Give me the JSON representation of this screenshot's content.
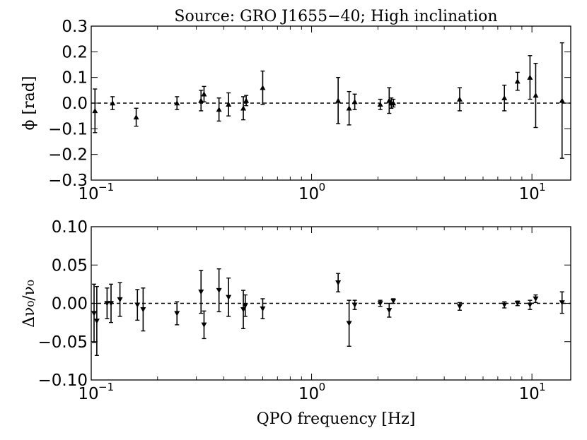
{
  "chart_data": [
    {
      "type": "scatter",
      "panel": "top",
      "title": "Source: GRO J1655−40; High inclination",
      "xlabel": "",
      "ylabel": "ϕ [rad]",
      "xscale": "log",
      "xlim": [
        0.1,
        15
      ],
      "ylim": [
        -0.3,
        0.3
      ],
      "yticks": [
        "−0.3",
        "−0.2",
        "−0.1",
        "0.0",
        "0.1",
        "0.2",
        "0.3"
      ],
      "xticks": [
        {
          "base": "10",
          "exp": "−1"
        },
        {
          "base": "10",
          "exp": "0"
        },
        {
          "base": "10",
          "exp": "1"
        }
      ],
      "marker": "triangle-up",
      "reference_line": {
        "y": 0,
        "style": "dashed"
      },
      "grid": false,
      "points": [
        {
          "x": 0.104,
          "y": -0.03,
          "err": 0.085
        },
        {
          "x": 0.125,
          "y": 0.0,
          "err": 0.025
        },
        {
          "x": 0.16,
          "y": -0.055,
          "err": 0.035
        },
        {
          "x": 0.245,
          "y": 0.0,
          "err": 0.025
        },
        {
          "x": 0.315,
          "y": 0.01,
          "err": 0.04
        },
        {
          "x": 0.325,
          "y": 0.035,
          "err": 0.03
        },
        {
          "x": 0.38,
          "y": -0.025,
          "err": 0.045
        },
        {
          "x": 0.42,
          "y": -0.005,
          "err": 0.045
        },
        {
          "x": 0.49,
          "y": -0.02,
          "err": 0.045
        },
        {
          "x": 0.505,
          "y": 0.01,
          "err": 0.02
        },
        {
          "x": 0.6,
          "y": 0.06,
          "err": 0.065
        },
        {
          "x": 1.32,
          "y": 0.01,
          "err": 0.09
        },
        {
          "x": 1.48,
          "y": -0.02,
          "err": 0.065
        },
        {
          "x": 1.57,
          "y": 0.005,
          "err": 0.03
        },
        {
          "x": 2.05,
          "y": -0.005,
          "err": 0.02
        },
        {
          "x": 2.25,
          "y": 0.01,
          "err": 0.05
        },
        {
          "x": 2.3,
          "y": 0.0,
          "err": 0.02
        },
        {
          "x": 2.35,
          "y": 0.0,
          "err": 0.015
        },
        {
          "x": 4.7,
          "y": 0.015,
          "err": 0.045
        },
        {
          "x": 7.5,
          "y": 0.02,
          "err": 0.05
        },
        {
          "x": 8.6,
          "y": 0.085,
          "err": 0.035
        },
        {
          "x": 9.8,
          "y": 0.1,
          "err": 0.085
        },
        {
          "x": 10.4,
          "y": 0.03,
          "err": 0.125
        },
        {
          "x": 13.7,
          "y": 0.01,
          "err": 0.225
        }
      ]
    },
    {
      "type": "scatter",
      "panel": "bottom",
      "title": "",
      "xlabel": "QPO frequency [Hz]",
      "ylabel": "Δν₀/ν₀",
      "xscale": "log",
      "xlim": [
        0.1,
        15
      ],
      "ylim": [
        -0.1,
        0.1
      ],
      "yticks": [
        "−0.10",
        "−0.05",
        "0.00",
        "0.05",
        "0.10"
      ],
      "xticks": [
        {
          "base": "10",
          "exp": "−1"
        },
        {
          "base": "10",
          "exp": "0"
        },
        {
          "base": "10",
          "exp": "1"
        }
      ],
      "marker": "triangle-down",
      "reference_line": {
        "y": 0,
        "style": "dashed"
      },
      "grid": false,
      "points": [
        {
          "x": 0.103,
          "y": -0.013,
          "err": 0.038
        },
        {
          "x": 0.106,
          "y": -0.023,
          "err": 0.045
        },
        {
          "x": 0.118,
          "y": 0.0,
          "err": 0.02
        },
        {
          "x": 0.123,
          "y": 0.0,
          "err": 0.025
        },
        {
          "x": 0.135,
          "y": 0.005,
          "err": 0.022
        },
        {
          "x": 0.162,
          "y": -0.002,
          "err": 0.02
        },
        {
          "x": 0.172,
          "y": -0.008,
          "err": 0.028
        },
        {
          "x": 0.245,
          "y": -0.013,
          "err": 0.015
        },
        {
          "x": 0.315,
          "y": 0.015,
          "err": 0.028
        },
        {
          "x": 0.325,
          "y": -0.028,
          "err": 0.018
        },
        {
          "x": 0.38,
          "y": 0.017,
          "err": 0.028
        },
        {
          "x": 0.42,
          "y": 0.008,
          "err": 0.025
        },
        {
          "x": 0.49,
          "y": -0.008,
          "err": 0.025
        },
        {
          "x": 0.5,
          "y": -0.003,
          "err": 0.014
        },
        {
          "x": 0.6,
          "y": -0.007,
          "err": 0.013
        },
        {
          "x": 1.32,
          "y": 0.027,
          "err": 0.012
        },
        {
          "x": 1.48,
          "y": -0.026,
          "err": 0.03
        },
        {
          "x": 1.57,
          "y": -0.002,
          "err": 0.006
        },
        {
          "x": 2.05,
          "y": 0.0,
          "err": 0.004
        },
        {
          "x": 2.25,
          "y": -0.009,
          "err": 0.009
        },
        {
          "x": 2.35,
          "y": 0.003,
          "err": 0.003
        },
        {
          "x": 4.7,
          "y": -0.004,
          "err": 0.005
        },
        {
          "x": 7.5,
          "y": -0.002,
          "err": 0.004
        },
        {
          "x": 8.6,
          "y": 0.0,
          "err": 0.003
        },
        {
          "x": 9.8,
          "y": -0.002,
          "err": 0.006
        },
        {
          "x": 10.4,
          "y": 0.006,
          "err": 0.005
        },
        {
          "x": 13.7,
          "y": 0.001,
          "err": 0.014
        }
      ]
    }
  ]
}
